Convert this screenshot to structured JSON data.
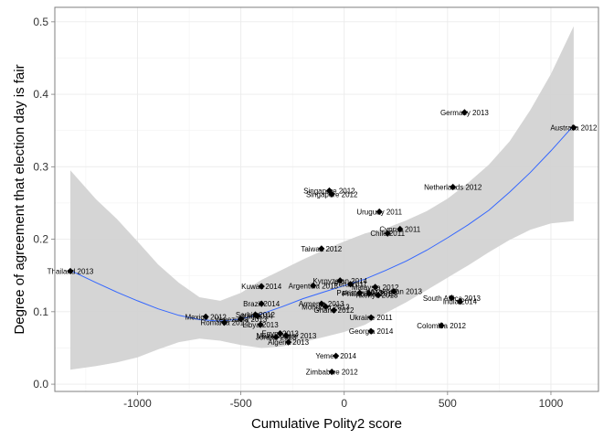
{
  "chart_data": {
    "type": "scatter",
    "title": "",
    "xlabel": "Cumulative Polity2 score",
    "ylabel": "Degree of agreement that election day is fair",
    "xlim": [
      -1400,
      1230
    ],
    "ylim": [
      -0.01,
      0.52
    ],
    "xticks": [
      -1000,
      -500,
      0,
      500,
      1000
    ],
    "xtick_labels": [
      "-1000",
      "-500",
      "0",
      "500",
      "1000"
    ],
    "yticks": [
      0.0,
      0.1,
      0.2,
      0.3,
      0.4,
      0.5
    ],
    "ytick_labels": [
      "0.0",
      "0.1",
      "0.2",
      "0.3",
      "0.4",
      "0.5"
    ],
    "grid": true,
    "colors": {
      "points": "#000000",
      "fit_line": "#3366ff",
      "confidence_band": "#d3d3d3",
      "grid": "#ebebeb",
      "border": "#7f7f7f"
    },
    "points": [
      {
        "label": "Thailand 2013",
        "x": -1325,
        "y": 0.156
      },
      {
        "label": "Australia 2012",
        "x": 1110,
        "y": 0.354
      },
      {
        "label": "Germany 2013",
        "x": 582,
        "y": 0.375
      },
      {
        "label": "Netherlands 2012",
        "x": 526,
        "y": 0.272
      },
      {
        "label": "Singapore 2012",
        "x": -72,
        "y": 0.267
      },
      {
        "label": "Singapore 2012",
        "x": -60,
        "y": 0.262
      },
      {
        "label": "Uruguay 2011",
        "x": 170,
        "y": 0.238
      },
      {
        "label": "Cyprus 2011",
        "x": 270,
        "y": 0.214
      },
      {
        "label": "Chile 2011",
        "x": 210,
        "y": 0.208
      },
      {
        "label": "Taiwan 2012",
        "x": -110,
        "y": 0.187
      },
      {
        "label": "Kyrgyzstan 2014",
        "x": -20,
        "y": 0.143
      },
      {
        "label": "Kuwait 2014",
        "x": -400,
        "y": 0.135
      },
      {
        "label": "Argentina 2013",
        "x": -150,
        "y": 0.136
      },
      {
        "label": "Peru 2011",
        "x": 30,
        "y": 0.138
      },
      {
        "label": "Malaysia 2012",
        "x": 150,
        "y": 0.134
      },
      {
        "label": "Pakistan 2013",
        "x": 75,
        "y": 0.126
      },
      {
        "label": "Philippines 2013",
        "x": 120,
        "y": 0.125
      },
      {
        "label": "Kenya 2013",
        "x": 165,
        "y": 0.123
      },
      {
        "label": "Kazakhstan 2013",
        "x": 240,
        "y": 0.128
      },
      {
        "label": "South Africa 2013",
        "x": 520,
        "y": 0.119
      },
      {
        "label": "India 2014",
        "x": 560,
        "y": 0.114
      },
      {
        "label": "Brazil 2014",
        "x": -400,
        "y": 0.111
      },
      {
        "label": "Armenia 2013",
        "x": -110,
        "y": 0.111
      },
      {
        "label": "Mongolia 2013",
        "x": -90,
        "y": 0.107
      },
      {
        "label": "Ghana 2012",
        "x": -50,
        "y": 0.102
      },
      {
        "label": "Serbia 2012",
        "x": -430,
        "y": 0.096
      },
      {
        "label": "Iraq 2014",
        "x": -420,
        "y": 0.094
      },
      {
        "label": "Mexico 2012",
        "x": -670,
        "y": 0.093
      },
      {
        "label": "Venezuela 2013",
        "x": -500,
        "y": 0.09
      },
      {
        "label": "Ukraine 2011",
        "x": 130,
        "y": 0.092
      },
      {
        "label": "Romania 2012",
        "x": -580,
        "y": 0.085
      },
      {
        "label": "Libya 2013",
        "x": -405,
        "y": 0.082
      },
      {
        "label": "Colombia 2012",
        "x": 470,
        "y": 0.081
      },
      {
        "label": "Egypt 2013",
        "x": -310,
        "y": 0.07
      },
      {
        "label": "Georgia 2014",
        "x": 130,
        "y": 0.073
      },
      {
        "label": "Mozambique 2013",
        "x": -280,
        "y": 0.067
      },
      {
        "label": "Jordan 2013",
        "x": -330,
        "y": 0.065
      },
      {
        "label": "Algeria 2013",
        "x": -270,
        "y": 0.058
      },
      {
        "label": "Yemen 2014",
        "x": -40,
        "y": 0.039
      },
      {
        "label": "Zimbabwe 2012",
        "x": -60,
        "y": 0.017
      }
    ],
    "fit_line": {
      "x": [
        -1325,
        -1200,
        -1100,
        -1000,
        -900,
        -800,
        -700,
        -600,
        -500,
        -400,
        -300,
        -200,
        -100,
        0,
        100,
        200,
        300,
        400,
        500,
        600,
        700,
        800,
        900,
        1000,
        1110
      ],
      "y": [
        0.157,
        0.14,
        0.127,
        0.115,
        0.104,
        0.095,
        0.089,
        0.087,
        0.09,
        0.097,
        0.107,
        0.118,
        0.127,
        0.136,
        0.145,
        0.157,
        0.17,
        0.185,
        0.202,
        0.22,
        0.24,
        0.265,
        0.292,
        0.322,
        0.357
      ]
    },
    "confidence_band": {
      "x": [
        -1325,
        -1200,
        -1100,
        -1000,
        -900,
        -800,
        -700,
        -600,
        -500,
        -400,
        -300,
        -200,
        -100,
        0,
        100,
        200,
        300,
        400,
        500,
        600,
        700,
        800,
        900,
        1000,
        1110
      ],
      "lower": [
        0.02,
        0.025,
        0.03,
        0.037,
        0.048,
        0.058,
        0.063,
        0.06,
        0.054,
        0.05,
        0.052,
        0.058,
        0.065,
        0.072,
        0.082,
        0.098,
        0.113,
        0.13,
        0.147,
        0.164,
        0.182,
        0.199,
        0.213,
        0.222,
        0.225
      ],
      "upper": [
        0.295,
        0.255,
        0.228,
        0.197,
        0.165,
        0.14,
        0.12,
        0.115,
        0.126,
        0.144,
        0.158,
        0.172,
        0.185,
        0.197,
        0.208,
        0.215,
        0.226,
        0.239,
        0.256,
        0.278,
        0.303,
        0.335,
        0.378,
        0.428,
        0.494
      ]
    }
  }
}
